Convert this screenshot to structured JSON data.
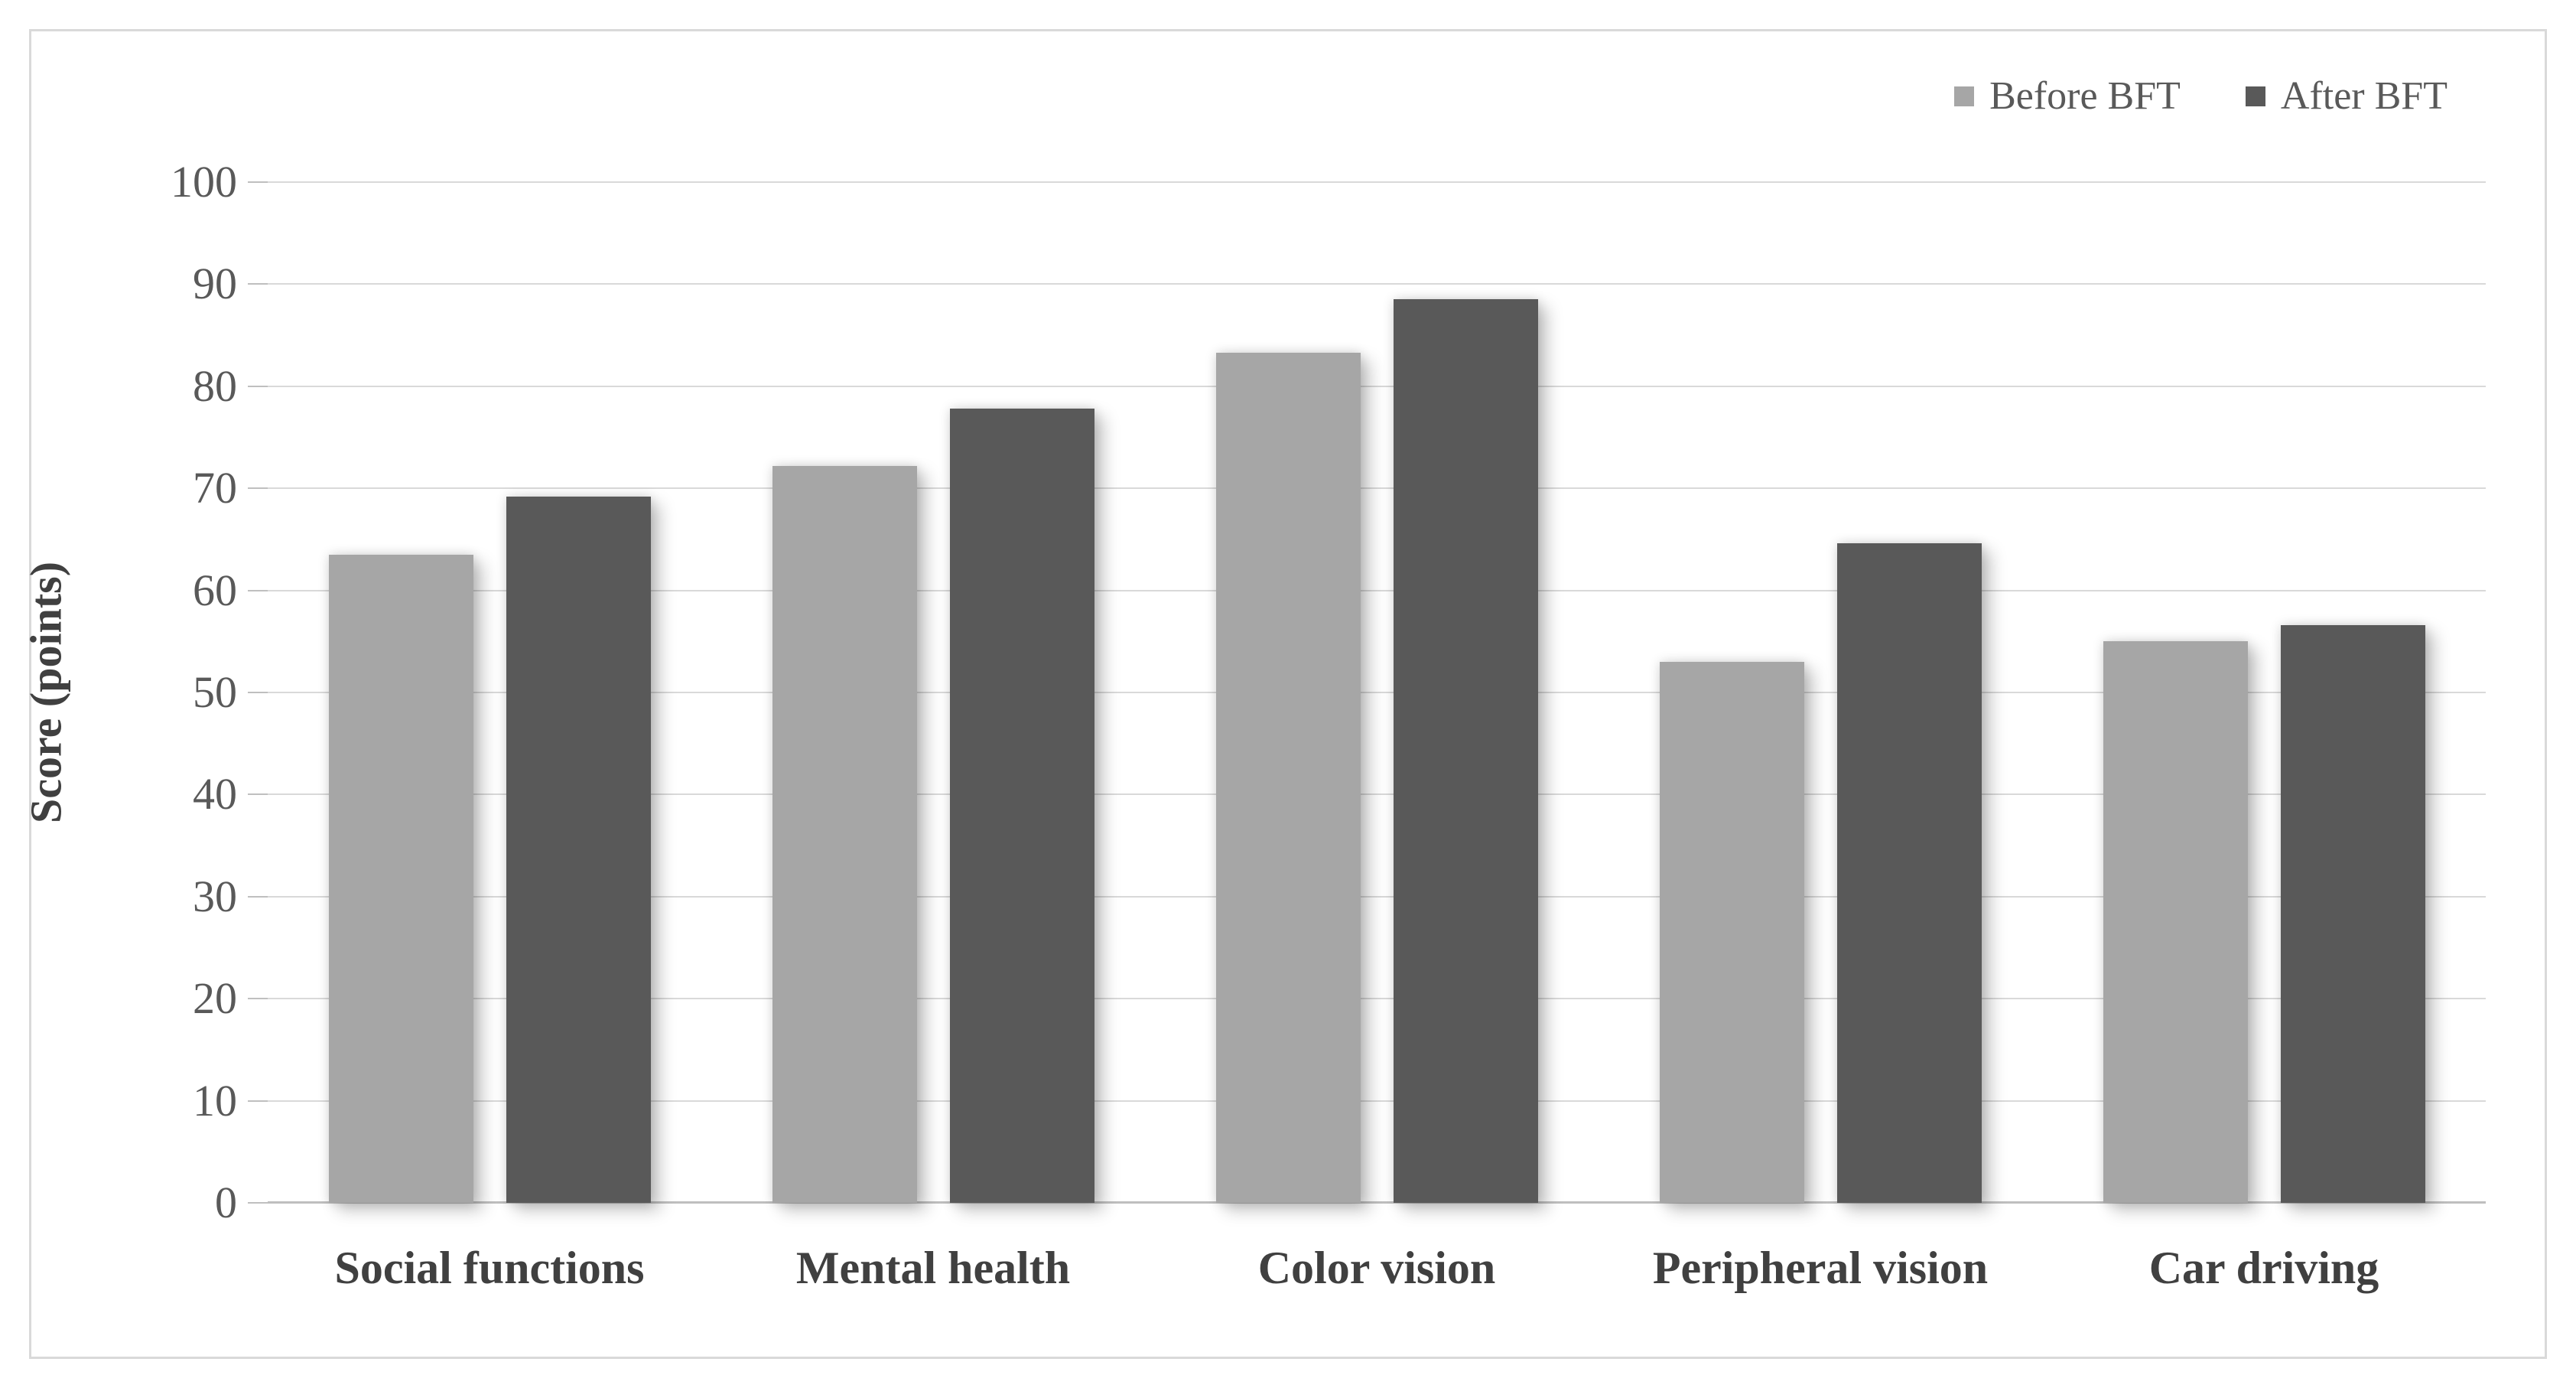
{
  "colors": {
    "before_bar": "#a6a6a6",
    "after_bar": "#595959",
    "gridline": "#d9d9d9",
    "axis_line": "#bfbfbf",
    "frame_border": "#d9d9d9",
    "text": "#404040",
    "tick_text": "#595959",
    "background": "#ffffff"
  },
  "legend": {
    "items": [
      {
        "label": "Before BFT",
        "color": "#a6a6a6"
      },
      {
        "label": "After BFT",
        "color": "#595959"
      }
    ],
    "position": "top-right"
  },
  "chart_data": {
    "type": "bar",
    "categories": [
      "Social functions",
      "Mental health",
      "Color vision",
      "Peripheral vision",
      "Car driving"
    ],
    "series": [
      {
        "name": "Before BFT",
        "color": "#a6a6a6",
        "values": [
          63.5,
          72.2,
          83.3,
          53.0,
          55.0
        ]
      },
      {
        "name": "After BFT",
        "color": "#595959",
        "values": [
          69.2,
          77.8,
          88.5,
          64.6,
          56.6
        ]
      }
    ],
    "title": "",
    "xlabel": "",
    "ylabel": "Score (points)",
    "ylim": [
      0,
      100
    ],
    "y_ticks": [
      0,
      10,
      20,
      30,
      40,
      50,
      60,
      70,
      80,
      90,
      100
    ],
    "grid": "horizontal",
    "legend_position": "top-right"
  }
}
